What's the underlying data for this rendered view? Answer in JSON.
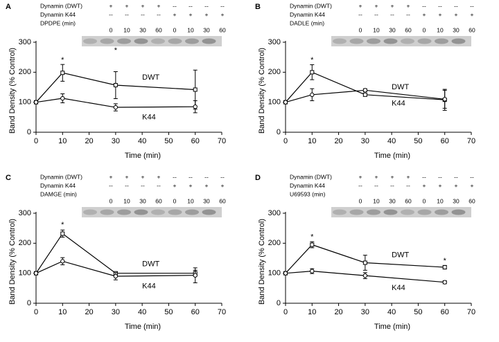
{
  "chart_data": [
    {
      "type": "line",
      "panel": "A",
      "xlabel": "Time (min)",
      "ylabel": "Band Density (% Control)",
      "xlim": [
        0,
        70
      ],
      "xticks": [
        0,
        10,
        20,
        30,
        40,
        50,
        60,
        70
      ],
      "ylim": [
        0,
        300
      ],
      "yticks": [
        0,
        100,
        200,
        300
      ],
      "x": [
        0,
        10,
        30,
        60
      ],
      "series": [
        {
          "name": "DWT",
          "marker": "square",
          "color": "#000000",
          "values": [
            100,
            198,
            157,
            142
          ],
          "errors": [
            0,
            28,
            45,
            65
          ]
        },
        {
          "name": "K44",
          "marker": "circle",
          "color": "#000000",
          "values": [
            100,
            113,
            83,
            85
          ],
          "errors": [
            0,
            15,
            12,
            20
          ]
        }
      ],
      "annotations": [
        {
          "text": "*",
          "x": 10,
          "y": 240
        },
        {
          "text": "*",
          "x": 30,
          "y": 272
        }
      ],
      "blot": {
        "rows": [
          {
            "label": "Dynamin (DWT)",
            "cells": [
              "+",
              "+",
              "+",
              "+",
              "--",
              "--",
              "--",
              "--"
            ]
          },
          {
            "label": "Dynamin K44",
            "cells": [
              "--",
              "--",
              "--",
              "--",
              "+",
              "+",
              "+",
              "+"
            ]
          },
          {
            "label": "DPDPE (min)",
            "cells": [
              "0",
              "10",
              "30",
              "60",
              "0",
              "10",
              "30",
              "60"
            ]
          }
        ]
      }
    },
    {
      "type": "line",
      "panel": "B",
      "xlabel": "Time (min)",
      "ylabel": "Band Density (% Control)",
      "xlim": [
        0,
        70
      ],
      "xticks": [
        0,
        10,
        20,
        30,
        40,
        50,
        60,
        70
      ],
      "ylim": [
        0,
        300
      ],
      "yticks": [
        0,
        100,
        200,
        300
      ],
      "x": [
        0,
        10,
        30,
        60
      ],
      "series": [
        {
          "name": "DWT",
          "marker": "square",
          "color": "#000000",
          "values": [
            100,
            200,
            125,
            108
          ],
          "errors": [
            0,
            25,
            5,
            35
          ]
        },
        {
          "name": "K44",
          "marker": "circle",
          "color": "#000000",
          "values": [
            100,
            125,
            140,
            110
          ],
          "errors": [
            0,
            20,
            5,
            30
          ]
        }
      ],
      "annotations": [
        {
          "text": "*",
          "x": 10,
          "y": 240
        }
      ],
      "blot": {
        "rows": [
          {
            "label": "Dynamin (DWT)",
            "cells": [
              "+",
              "+",
              "+",
              "+",
              "--",
              "--",
              "--",
              "--"
            ]
          },
          {
            "label": "Dynamin K44",
            "cells": [
              "--",
              "--",
              "--",
              "--",
              "+",
              "+",
              "+",
              "+"
            ]
          },
          {
            "label": "DADLE (min)",
            "cells": [
              "0",
              "10",
              "30",
              "60",
              "0",
              "10",
              "30",
              "60"
            ]
          }
        ]
      }
    },
    {
      "type": "line",
      "panel": "C",
      "xlabel": "Time (min)",
      "ylabel": "Band Density (% Control)",
      "xlim": [
        0,
        70
      ],
      "xticks": [
        0,
        10,
        20,
        30,
        40,
        50,
        60,
        70
      ],
      "ylim": [
        0,
        300
      ],
      "yticks": [
        0,
        100,
        200,
        300
      ],
      "x": [
        0,
        10,
        30,
        60
      ],
      "series": [
        {
          "name": "DWT",
          "marker": "square",
          "color": "#000000",
          "values": [
            100,
            232,
            100,
            100
          ],
          "errors": [
            0,
            12,
            5,
            10
          ]
        },
        {
          "name": "K44",
          "marker": "circle",
          "color": "#000000",
          "values": [
            100,
            140,
            90,
            93
          ],
          "errors": [
            0,
            12,
            12,
            25
          ]
        }
      ],
      "annotations": [
        {
          "text": "*",
          "x": 10,
          "y": 260
        }
      ],
      "blot": {
        "rows": [
          {
            "label": "Dynamin (DWT)",
            "cells": [
              "+",
              "+",
              "+",
              "+",
              "--",
              "--",
              "--",
              "--"
            ]
          },
          {
            "label": "Dynamin K44",
            "cells": [
              "--",
              "--",
              "--",
              "--",
              "+",
              "+",
              "+",
              "+"
            ]
          },
          {
            "label": "DAMGE (min)",
            "cells": [
              "0",
              "10",
              "30",
              "60",
              "0",
              "10",
              "30",
              "60"
            ]
          }
        ]
      }
    },
    {
      "type": "line",
      "panel": "D",
      "xlabel": "Time (min)",
      "ylabel": "Band Density (% Control)",
      "xlim": [
        0,
        70
      ],
      "xticks": [
        0,
        10,
        20,
        30,
        40,
        50,
        60,
        70
      ],
      "ylim": [
        0,
        300
      ],
      "yticks": [
        0,
        100,
        200,
        300
      ],
      "x": [
        0,
        10,
        30,
        60
      ],
      "series": [
        {
          "name": "DWT",
          "marker": "square",
          "color": "#000000",
          "values": [
            100,
            195,
            135,
            120
          ],
          "errors": [
            0,
            10,
            25,
            6
          ]
        },
        {
          "name": "K44",
          "marker": "circle",
          "color": "#000000",
          "values": [
            100,
            107,
            92,
            70
          ],
          "errors": [
            0,
            8,
            10,
            5
          ]
        }
      ],
      "annotations": [
        {
          "text": "*",
          "x": 10,
          "y": 220
        },
        {
          "text": "*",
          "x": 60,
          "y": 140
        }
      ],
      "blot": {
        "rows": [
          {
            "label": "Dynamin (DWT)",
            "cells": [
              "+",
              "+",
              "+",
              "+",
              "--",
              "--",
              "--",
              "--"
            ]
          },
          {
            "label": "Dynamin K44",
            "cells": [
              "--",
              "--",
              "--",
              "--",
              "+",
              "+",
              "+",
              "+"
            ]
          },
          {
            "label": "U69593 (min)",
            "cells": [
              "0",
              "10",
              "30",
              "60",
              "0",
              "10",
              "30",
              "60"
            ]
          }
        ]
      }
    }
  ]
}
